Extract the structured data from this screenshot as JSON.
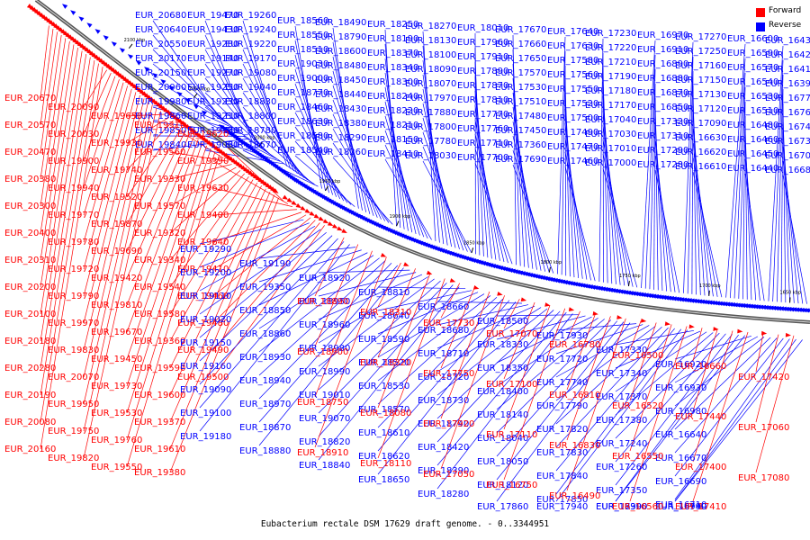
{
  "legend": {
    "forward": {
      "label": "Forward",
      "color": "#ff0000"
    },
    "reverse": {
      "label": "Reverse",
      "color": "#0000ff"
    }
  },
  "caption": "Eubacterium rectale DSM 17629 draft genome. - 0..3344951",
  "scale_ticks": [
    "2100 kbp",
    "2050 kbp",
    "2000 kbp",
    "1950 kbp",
    "1900 kbp",
    "1850 kbp",
    "1800 kbp",
    "1750 kbp",
    "1700 kbp",
    "1650 kbp"
  ],
  "labels": {
    "reverse_top": [
      "EUR_20680",
      "EUR_20640",
      "EUR_20550",
      "EUR_20170",
      "EUR_20150",
      "EUR_20060",
      "EUR_19980",
      "EUR_19860",
      "EUR_19850",
      "EUR_19840",
      "EUR_19470",
      "EUR_19430",
      "EUR_19280",
      "EUR_19140",
      "EUR_19270",
      "EUR_19250",
      "EUR_19230",
      "EUR_19210",
      "EUR_19130",
      "EUR_19060",
      "EUR_19260",
      "EUR_19240",
      "EUR_19220",
      "EUR_19170",
      "EUR_19080",
      "EUR_19040",
      "EUR_18830",
      "EUR_18800",
      "EUR_18780",
      "EUR_18670",
      "EUR_18560",
      "EUR_18550",
      "EUR_18510",
      "EUR_19030",
      "EUR_19000",
      "EUR_18770",
      "EUR_18460",
      "EUR_18630",
      "EUR_18580",
      "EUR_18540",
      "EUR_18490",
      "EUR_18790",
      "EUR_18600",
      "EUR_18480",
      "EUR_18450",
      "EUR_18440",
      "EUR_18430",
      "EUR_18380",
      "EUR_18290",
      "EUR_18260",
      "EUR_18250",
      "EUR_18190",
      "EUR_18370",
      "EUR_18340",
      "EUR_18300",
      "EUR_18240",
      "EUR_18220",
      "EUR_18210",
      "EUR_18150",
      "EUR_18410",
      "EUR_18270",
      "EUR_18130",
      "EUR_18100",
      "EUR_18090",
      "EUR_18070",
      "EUR_17970",
      "EUR_17880",
      "EUR_17800",
      "EUR_17780",
      "EUR_18030",
      "EUR_18010",
      "EUR_17960",
      "EUR_17910",
      "EUR_17890",
      "EUR_17870",
      "EUR_17810",
      "EUR_17770",
      "EUR_17760",
      "EUR_17710",
      "EUR_17700",
      "EUR_17670",
      "EUR_17660",
      "EUR_17650",
      "EUR_17570",
      "EUR_17530",
      "EUR_17510",
      "EUR_17480",
      "EUR_17450",
      "EUR_17360",
      "EUR_17690",
      "EUR_17640",
      "EUR_17630",
      "EUR_17580",
      "EUR_17560",
      "EUR_17550",
      "EUR_17520",
      "EUR_17500",
      "EUR_17490",
      "EUR_17470",
      "EUR_17460",
      "EUR_17230",
      "EUR_17220",
      "EUR_17210",
      "EUR_17190",
      "EUR_17180",
      "EUR_17170",
      "EUR_17040",
      "EUR_17030",
      "EUR_17010",
      "EUR_17000",
      "EUR_16970",
      "EUR_16910",
      "EUR_16890",
      "EUR_16880",
      "EUR_16870",
      "EUR_16850",
      "EUR_17320",
      "EUR_17310",
      "EUR_17290",
      "EUR_17280",
      "EUR_17270",
      "EUR_17250",
      "EUR_17160",
      "EUR_17150",
      "EUR_17130",
      "EUR_17120",
      "EUR_17090",
      "EUR_16630",
      "EUR_16620",
      "EUR_16610",
      "EUR_16600",
      "EUR_16590",
      "EUR_16570",
      "EUR_16540",
      "EUR_16530",
      "EUR_16510",
      "EUR_16480",
      "EUR_16460",
      "EUR_16450",
      "EUR_16440",
      "EUR_16430",
      "EUR_16420",
      "EUR_16410",
      "EUR_16390",
      "EUR_16770",
      "EUR_16760",
      "EUR_16740",
      "EUR_16730",
      "EUR_16700",
      "EUR_16680"
    ],
    "forward_left": [
      "EUR_20670",
      "EUR_20570",
      "EUR_20470",
      "EUR_20380",
      "EUR_20300",
      "EUR_20400",
      "EUR_20310",
      "EUR_20200",
      "EUR_20100",
      "EUR_20180",
      "EUR_20280",
      "EUR_20190",
      "EUR_20080",
      "EUR_20160",
      "EUR_20090",
      "EUR_20030",
      "EUR_19900",
      "EUR_19940",
      "EUR_19770",
      "EUR_19780",
      "EUR_19720",
      "EUR_19790",
      "EUR_19970",
      "EUR_19830",
      "EUR_20070",
      "EUR_19950",
      "EUR_19750",
      "EUR_19820",
      "EUR_19650",
      "EUR_19930",
      "EUR_19740",
      "EUR_19520",
      "EUR_19870",
      "EUR_19690",
      "EUR_19420",
      "EUR_19810",
      "EUR_19670",
      "EUR_19450",
      "EUR_19730",
      "EUR_19530",
      "EUR_19760",
      "EUR_19550",
      "EUR_19310",
      "EUR_19560",
      "EUR_19330",
      "EUR_19570",
      "EUR_19320",
      "EUR_19340",
      "EUR_19540",
      "EUR_19580",
      "EUR_19360",
      "EUR_19590",
      "EUR_19600",
      "EUR_19370",
      "EUR_19610",
      "EUR_19380",
      "EUR_19620",
      "EUR_19390",
      "EUR_19630",
      "EUR_19400",
      "EUR_19640",
      "EUR_19410",
      "EUR_19460",
      "EUR_19480",
      "EUR_19490",
      "EUR_19500"
    ],
    "reverse_bottom": [
      "EUR_19290",
      "EUR_19200",
      "EUR_19110",
      "EUR_19020",
      "EUR_19150",
      "EUR_19160",
      "EUR_19090",
      "EUR_19100",
      "EUR_19180",
      "EUR_19190",
      "EUR_19350",
      "EUR_18850",
      "EUR_18860",
      "EUR_18930",
      "EUR_18940",
      "EUR_18970",
      "EUR_18870",
      "EUR_18880",
      "EUR_18920",
      "EUR_18950",
      "EUR_18960",
      "EUR_18980",
      "EUR_18990",
      "EUR_19010",
      "EUR_19070",
      "EUR_18820",
      "EUR_18840",
      "EUR_18810",
      "EUR_18640",
      "EUR_18590",
      "EUR_18520",
      "EUR_18530",
      "EUR_18570",
      "EUR_18610",
      "EUR_18620",
      "EUR_18650",
      "EUR_18660",
      "EUR_18680",
      "EUR_18710",
      "EUR_18720",
      "EUR_18730",
      "EUR_18740",
      "EUR_18420",
      "EUR_18390",
      "EUR_18280",
      "EUR_18500",
      "EUR_18330",
      "EUR_18350",
      "EUR_18400",
      "EUR_18140",
      "EUR_18040",
      "EUR_18050",
      "EUR_18120",
      "EUR_17860",
      "EUR_17930",
      "EUR_17720",
      "EUR_17740",
      "EUR_17790",
      "EUR_17820",
      "EUR_17830",
      "EUR_17840",
      "EUR_17850",
      "EUR_17940",
      "EUR_17330",
      "EUR_17340",
      "EUR_17370",
      "EUR_17380",
      "EUR_17240",
      "EUR_17260",
      "EUR_17350",
      "EUR_17390",
      "EUR_16900",
      "EUR_16920",
      "EUR_16930",
      "EUR_16980",
      "EUR_16640",
      "EUR_16670",
      "EUR_16690",
      "EUR_16710",
      "EUR_16790",
      "EUR_16940"
    ],
    "forward_bottom": [
      "EUR_18890",
      "EUR_18900",
      "EUR_18750",
      "EUR_18910",
      "EUR_18310",
      "EUR_18320",
      "EUR_18080",
      "EUR_18110",
      "EUR_17730",
      "EUR_17750",
      "EUR_17920",
      "EUR_17050",
      "EUR_17070",
      "EUR_17100",
      "EUR_17110",
      "EUR_16750",
      "EUR_16780",
      "EUR_16810",
      "EUR_16830",
      "EUR_16490",
      "EUR_16500",
      "EUR_16520",
      "EUR_16550",
      "EUR_16560",
      "EUR_16660",
      "EUR_17440",
      "EUR_17400",
      "EUR_17410",
      "EUR_17420",
      "EUR_17060",
      "EUR_17080"
    ]
  }
}
